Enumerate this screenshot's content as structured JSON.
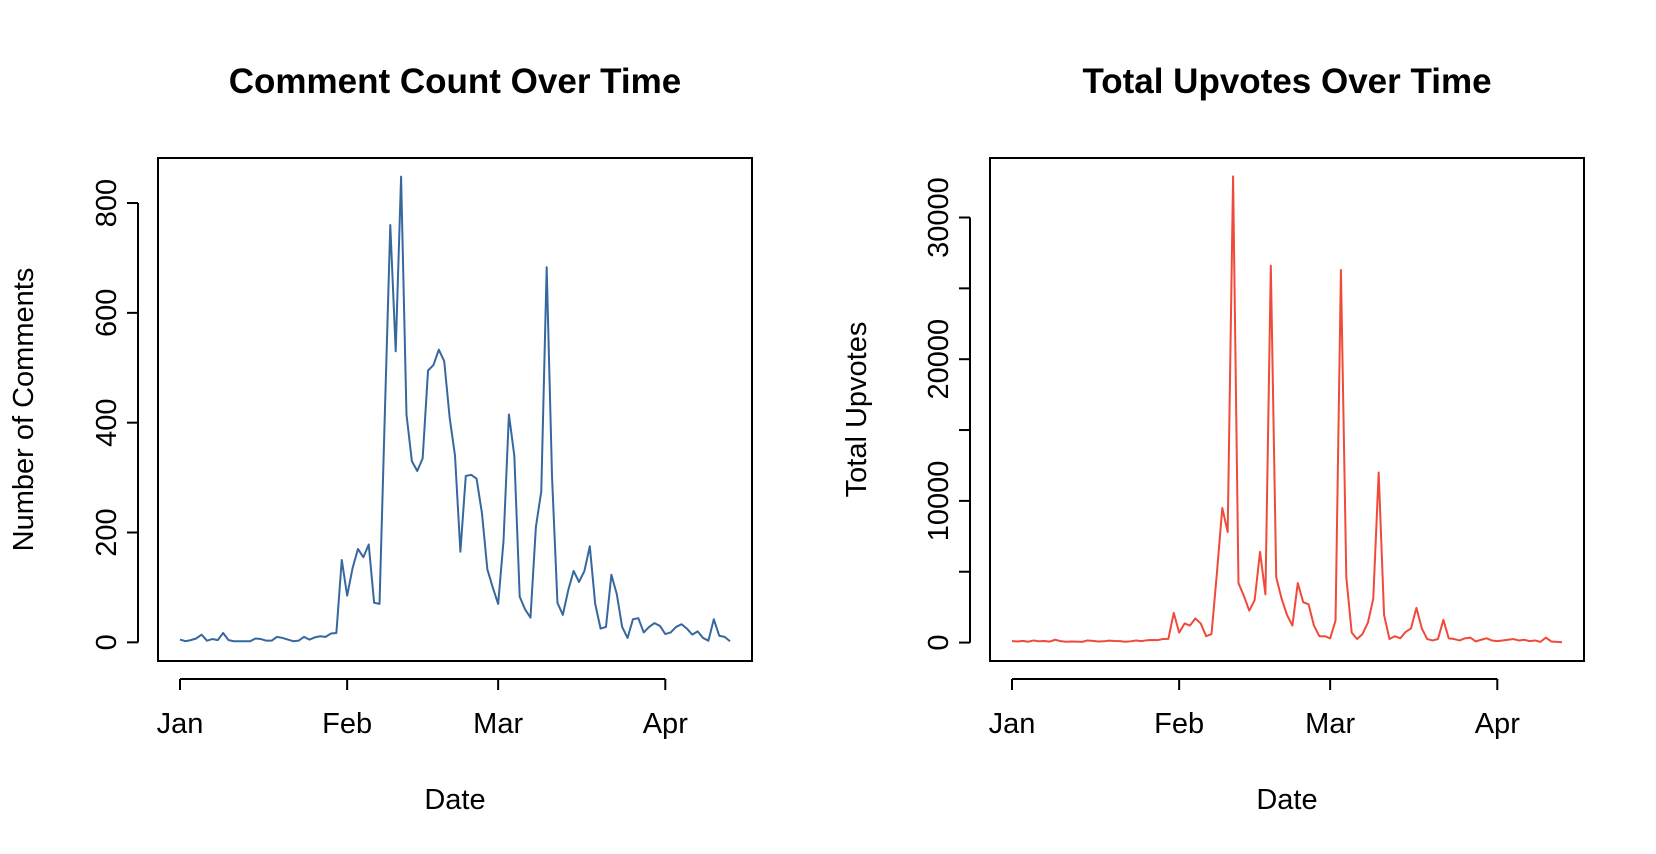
{
  "chart_data": [
    {
      "type": "line",
      "title": "Comment Count Over Time",
      "xlabel": "Date",
      "ylabel": "Number of Comments",
      "categories": [
        "Jan",
        null,
        null,
        null,
        null,
        null,
        null,
        null,
        null,
        null,
        null,
        null,
        null,
        null,
        null,
        null,
        null,
        null,
        null,
        null,
        null,
        null,
        null,
        null,
        null,
        null,
        null,
        null,
        null,
        null,
        null,
        "Feb",
        null,
        null,
        null,
        null,
        null,
        null,
        null,
        null,
        null,
        null,
        null,
        null,
        null,
        null,
        null,
        null,
        null,
        null,
        null,
        null,
        null,
        null,
        null,
        null,
        null,
        null,
        null,
        "Mar",
        null,
        null,
        null,
        null,
        null,
        null,
        null,
        null,
        null,
        null,
        null,
        null,
        null,
        null,
        null,
        null,
        null,
        null,
        null,
        null,
        null,
        null,
        null,
        null,
        null,
        null,
        null,
        null,
        null,
        null,
        "Apr",
        null,
        null,
        null,
        null,
        null,
        null,
        null,
        null,
        null,
        null,
        null,
        null
      ],
      "values": [
        5,
        2,
        4,
        7,
        14,
        3,
        6,
        4,
        17,
        4,
        2,
        2,
        2,
        2,
        7,
        6,
        3,
        3,
        10,
        8,
        5,
        2,
        3,
        10,
        5,
        9,
        11,
        10,
        16,
        17,
        150,
        85,
        135,
        170,
        155,
        178,
        72,
        70,
        420,
        760,
        530,
        848,
        415,
        330,
        312,
        335,
        495,
        505,
        533,
        512,
        410,
        340,
        165,
        303,
        305,
        298,
        235,
        133,
        100,
        70,
        185,
        415,
        340,
        83,
        60,
        45,
        210,
        275,
        683,
        300,
        72,
        50,
        95,
        130,
        110,
        130,
        175,
        70,
        25,
        28,
        123,
        88,
        28,
        8,
        42,
        44,
        18,
        28,
        35,
        30,
        15,
        18,
        28,
        33,
        25,
        14,
        20,
        8,
        3,
        42,
        12,
        10,
        2
      ],
      "color": "#36689f",
      "ylim": [
        -34,
        882
      ],
      "yticks": [
        0,
        200,
        400,
        600,
        800
      ]
    },
    {
      "type": "line",
      "title": "Total Upvotes Over Time",
      "xlabel": "Date",
      "ylabel": "Total Upvotes",
      "categories": [
        "Jan",
        null,
        null,
        null,
        null,
        null,
        null,
        null,
        null,
        null,
        null,
        null,
        null,
        null,
        null,
        null,
        null,
        null,
        null,
        null,
        null,
        null,
        null,
        null,
        null,
        null,
        null,
        null,
        null,
        null,
        null,
        "Feb",
        null,
        null,
        null,
        null,
        null,
        null,
        null,
        null,
        null,
        null,
        null,
        null,
        null,
        null,
        null,
        null,
        null,
        null,
        null,
        null,
        null,
        null,
        null,
        null,
        null,
        null,
        null,
        "Mar",
        null,
        null,
        null,
        null,
        null,
        null,
        null,
        null,
        null,
        null,
        null,
        null,
        null,
        null,
        null,
        null,
        null,
        null,
        null,
        null,
        null,
        null,
        null,
        null,
        null,
        null,
        null,
        null,
        null,
        null,
        "Apr",
        null,
        null,
        null,
        null,
        null,
        null,
        null,
        null,
        null,
        null,
        null,
        null
      ],
      "values": [
        100,
        80,
        120,
        60,
        150,
        90,
        110,
        70,
        200,
        100,
        60,
        80,
        70,
        50,
        150,
        120,
        80,
        90,
        140,
        110,
        100,
        60,
        90,
        150,
        100,
        160,
        180,
        170,
        250,
        260,
        2100,
        700,
        1350,
        1200,
        1700,
        1350,
        450,
        600,
        4900,
        9500,
        7800,
        32900,
        4200,
        3300,
        2250,
        3000,
        6400,
        3400,
        26600,
        4600,
        3100,
        1950,
        1200,
        4200,
        2850,
        2700,
        1200,
        450,
        450,
        300,
        1550,
        26300,
        4600,
        700,
        250,
        600,
        1400,
        3100,
        12000,
        1950,
        250,
        450,
        300,
        750,
        1000,
        2450,
        1000,
        250,
        150,
        250,
        1600,
        300,
        250,
        150,
        300,
        350,
        80,
        200,
        300,
        150,
        100,
        150,
        200,
        250,
        150,
        200,
        100,
        150,
        50,
        350,
        80,
        50,
        20
      ],
      "color": "#f04a3a",
      "ylim": [
        -1300,
        34200
      ],
      "yticks": [
        0,
        10000,
        20000,
        30000
      ],
      "yminorticks": [
        5000,
        15000,
        25000
      ]
    }
  ]
}
